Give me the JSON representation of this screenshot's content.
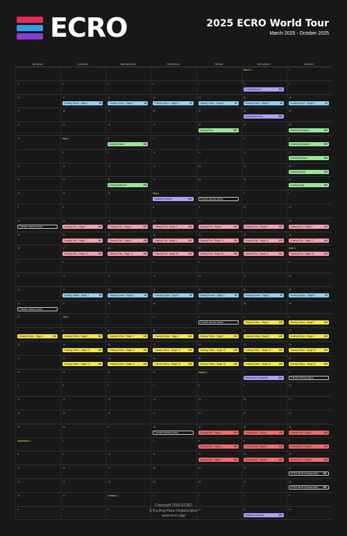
{
  "header": {
    "logo_text": "ECRO",
    "logo_colors": [
      "#e8285e",
      "#2f9ee6",
      "#8d3bd6"
    ],
    "title": "2025 ECRO World Tour",
    "subtitle": "March 2025 - October 2025"
  },
  "days": [
    "MONDAY",
    "TUESDAY",
    "WEDNESDAY",
    "THURSDAY",
    "FRIDAY",
    "SATURDAY",
    "SUNDAY"
  ],
  "colors": {
    "purple": "#b59cff",
    "blue": "#8fd2f5",
    "green": "#9be59a",
    "pink": "#f5a1b4",
    "yellow": "#f2e94c",
    "red": "#f26b6b",
    "outline": "outline"
  },
  "weeks": [
    {
      "days": [
        "",
        "",
        "",
        "",
        "",
        "March 1",
        "2"
      ],
      "events": []
    },
    {
      "days": [
        "3",
        "4",
        "5",
        "6",
        "7",
        "8",
        "9"
      ],
      "events": [
        {
          "col": 5,
          "row": 0,
          "label": "Chasing Blanche",
          "pts": "300",
          "color": "purple"
        }
      ]
    },
    {
      "days": [
        "10",
        "11",
        "12",
        "13",
        "14",
        "15",
        "16"
      ],
      "events": [
        {
          "col": 1,
          "row": 0,
          "label": "Chasing d'Azur - Stage 1",
          "pts": "60",
          "color": "blue"
        },
        {
          "col": 2,
          "row": 0,
          "label": "Chasing d'Azur - Stage 2",
          "pts": "60",
          "color": "blue"
        },
        {
          "col": 3,
          "row": 0,
          "label": "Chasing d'Azur - Stage 3",
          "pts": "60",
          "color": "blue"
        },
        {
          "col": 4,
          "row": 0,
          "label": "Chasing d'Azur - Stage 4",
          "pts": "60",
          "color": "blue"
        },
        {
          "col": 5,
          "row": 0,
          "label": "Chasing d'Azur - Stage 5",
          "pts": "60",
          "color": "blue"
        },
        {
          "col": 6,
          "row": 0,
          "label": "Chasing d'Azur - Stage 6",
          "pts": "60",
          "color": "blue"
        }
      ]
    },
    {
      "days": [
        "17",
        "18",
        "19",
        "20",
        "21",
        "22",
        "23"
      ],
      "events": [
        {
          "col": 5,
          "row": 0,
          "label": "Chasing Sanremo",
          "pts": "300",
          "color": "purple"
        }
      ]
    },
    {
      "days": [
        "24",
        "25",
        "26",
        "27",
        "28",
        "29",
        "30"
      ],
      "events": [
        {
          "col": 4,
          "row": 0,
          "label": "Chasing Saxo",
          "pts": "300",
          "color": "green"
        },
        {
          "col": 6,
          "row": 0,
          "label": "Chasing Wevelgem",
          "pts": "300",
          "color": "green"
        }
      ]
    },
    {
      "days": [
        "31",
        "April 1",
        "2",
        "3",
        "4",
        "5",
        "6"
      ],
      "events": [
        {
          "col": 2,
          "row": 0,
          "label": "Chasing Dwars",
          "pts": "300",
          "color": "green"
        },
        {
          "col": 6,
          "row": 0,
          "label": "Chasing Vlaanderen",
          "pts": "300",
          "color": "green"
        }
      ]
    },
    {
      "days": [
        "7",
        "8",
        "9",
        "10",
        "11",
        "12",
        "13"
      ],
      "events": [
        {
          "col": 6,
          "row": 0,
          "label": "Chasing Roubaix",
          "pts": "300",
          "color": "green"
        }
      ]
    },
    {
      "days": [
        "14",
        "15",
        "16",
        "17",
        "18",
        "19",
        "20"
      ],
      "events": [
        {
          "col": 6,
          "row": 0,
          "label": "Chasing Amstel",
          "pts": "300",
          "color": "green"
        }
      ]
    },
    {
      "days": [
        "21",
        "22",
        "23",
        "24",
        "25",
        "26",
        "27"
      ],
      "events": [
        {
          "col": 2,
          "row": 0,
          "label": "Chasing Wallonne",
          "pts": "300",
          "color": "green"
        },
        {
          "col": 6,
          "row": 0,
          "label": "Chasing Liege",
          "pts": "300",
          "color": "green"
        }
      ]
    },
    {
      "days": [
        "28",
        "29",
        "30",
        "May 1",
        "2",
        "3",
        "4"
      ],
      "events": [
        {
          "col": 3,
          "row": 0,
          "label": "Chasing Frankfurt",
          "pts": "300",
          "color": "purple"
        },
        {
          "col": 4,
          "row": 0,
          "label": "Transfer window opens",
          "pts": "",
          "color": "outline"
        }
      ]
    },
    {
      "days": [
        "5",
        "6",
        "7",
        "8",
        "9",
        "10",
        "11"
      ],
      "events": []
    },
    {
      "days": [
        "12",
        "13",
        "14",
        "15",
        "16",
        "17",
        "18"
      ],
      "events": [
        {
          "col": 0,
          "row": 0,
          "label": "Transfer window closes",
          "pts": "",
          "color": "outline"
        },
        {
          "col": 1,
          "row": 0,
          "label": "Chasing Pink - Stage 1",
          "pts": "100",
          "color": "pink"
        },
        {
          "col": 2,
          "row": 0,
          "label": "Chasing Pink - Stage 2",
          "pts": "100",
          "color": "pink"
        },
        {
          "col": 3,
          "row": 0,
          "label": "Chasing Pink - Stage 3",
          "pts": "100",
          "color": "pink"
        },
        {
          "col": 4,
          "row": 0,
          "label": "Chasing Pink - Stage 4",
          "pts": "100",
          "color": "pink"
        },
        {
          "col": 5,
          "row": 0,
          "label": "Chasing Pink - Stage 5",
          "pts": "100",
          "color": "pink"
        },
        {
          "col": 6,
          "row": 0,
          "label": "Chasing Pink - Stage 6",
          "pts": "100",
          "color": "pink"
        }
      ]
    },
    {
      "days": [
        "19",
        "20",
        "21",
        "22",
        "23",
        "24",
        "25"
      ],
      "events": [
        {
          "col": 1,
          "row": 0,
          "label": "Chasing Pink - Stage 7",
          "pts": "100",
          "color": "pink"
        },
        {
          "col": 2,
          "row": 0,
          "label": "Chasing Pink - Stage 8",
          "pts": "100",
          "color": "pink"
        },
        {
          "col": 3,
          "row": 0,
          "label": "Chasing Pink - Stage 9",
          "pts": "100",
          "color": "pink"
        },
        {
          "col": 4,
          "row": 0,
          "label": "Chasing Pink - Stage 10",
          "pts": "100",
          "color": "pink"
        },
        {
          "col": 5,
          "row": 0,
          "label": "Chasing Pink - Stage 11",
          "pts": "100",
          "color": "pink"
        },
        {
          "col": 6,
          "row": 0,
          "label": "Chasing Pink - Stage 12",
          "pts": "100",
          "color": "pink"
        }
      ]
    },
    {
      "days": [
        "26",
        "27",
        "28",
        "29",
        "30",
        "31",
        "June 1"
      ],
      "events": [
        {
          "col": 1,
          "row": 0,
          "label": "Chasing Pink - Stage 13",
          "pts": "100",
          "color": "pink"
        },
        {
          "col": 2,
          "row": 0,
          "label": "Chasing Pink - Stage 14",
          "pts": "100",
          "color": "pink"
        },
        {
          "col": 3,
          "row": 0,
          "label": "Chasing Pink - Stage 15",
          "pts": "100",
          "color": "pink"
        },
        {
          "col": 4,
          "row": 0,
          "label": "Chasing Pink - Stage 16",
          "pts": "100",
          "color": "pink"
        },
        {
          "col": 5,
          "row": 0,
          "label": "Chasing Pink - Stage 17",
          "pts": "100",
          "color": "pink"
        },
        {
          "col": 6,
          "row": 0,
          "label": "Chasing Pink - Stage 18",
          "pts": "100",
          "color": "pink"
        }
      ]
    },
    {
      "days": [
        "2",
        "3",
        "4",
        "5",
        "6",
        "7",
        "8"
      ],
      "events": []
    },
    {
      "days": [
        "9",
        "10",
        "11",
        "12",
        "13",
        "14",
        "15"
      ],
      "events": []
    },
    {
      "days": [
        "16",
        "17",
        "18",
        "19",
        "20",
        "21",
        "22"
      ],
      "events": [
        {
          "col": 1,
          "row": 0,
          "label": "Chasing Suisse - Stage 1",
          "pts": "60",
          "color": "blue"
        },
        {
          "col": 2,
          "row": 0,
          "label": "Chasing Suisse - Stage 2",
          "pts": "60",
          "color": "blue"
        },
        {
          "col": 3,
          "row": 0,
          "label": "Chasing Suisse - Stage 3",
          "pts": "60",
          "color": "blue"
        },
        {
          "col": 4,
          "row": 0,
          "label": "Chasing Suisse - Stage 4",
          "pts": "60",
          "color": "blue"
        },
        {
          "col": 5,
          "row": 0,
          "label": "Chasing Suisse - Stage 5",
          "pts": "60",
          "color": "blue"
        },
        {
          "col": 6,
          "row": 0,
          "label": "Chasing Suisse - Stage 6",
          "pts": "60",
          "color": "blue"
        }
      ]
    },
    {
      "days": [
        "23",
        "24",
        "25",
        "26",
        "27",
        "28",
        "29"
      ],
      "events": [
        {
          "col": 0,
          "row": 0,
          "label": "Transfer window opens",
          "pts": "",
          "color": "outline"
        }
      ]
    },
    {
      "days": [
        "30",
        "July 1",
        "2",
        "3",
        "4",
        "5",
        "6"
      ],
      "events": [
        {
          "col": 4,
          "row": 0,
          "label": "Transfer window closes",
          "pts": "",
          "color": "outline"
        },
        {
          "col": 5,
          "row": 0,
          "label": "Chasing Yellow - Stage 1",
          "pts": "120",
          "color": "yellow"
        },
        {
          "col": 6,
          "row": 0,
          "label": "Chasing Yellow - Stage 2",
          "pts": "120",
          "color": "yellow"
        }
      ]
    },
    {
      "days": [
        "7",
        "8",
        "9",
        "10",
        "11",
        "12",
        "13"
      ],
      "events": [
        {
          "col": 0,
          "row": 0,
          "label": "Chasing Yellow - Stage 3",
          "pts": "120",
          "color": "yellow"
        },
        {
          "col": 1,
          "row": 0,
          "label": "Chasing Yellow - Stage 4",
          "pts": "120",
          "color": "yellow"
        },
        {
          "col": 2,
          "row": 0,
          "label": "Chasing Yellow - Stage 5",
          "pts": "120",
          "color": "yellow"
        },
        {
          "col": 3,
          "row": 0,
          "label": "Chasing Yellow - Stage 6",
          "pts": "120",
          "color": "yellow"
        },
        {
          "col": 4,
          "row": 0,
          "label": "Chasing Yellow - Stage 7",
          "pts": "120",
          "color": "yellow"
        },
        {
          "col": 5,
          "row": 0,
          "label": "Chasing Yellow - Stage 8",
          "pts": "120",
          "color": "yellow"
        },
        {
          "col": 6,
          "row": 0,
          "label": "Chasing Yellow - Stage 9",
          "pts": "120",
          "color": "yellow"
        }
      ]
    },
    {
      "days": [
        "14",
        "15",
        "16",
        "17",
        "18",
        "19",
        "20"
      ],
      "events": [
        {
          "col": 1,
          "row": 0,
          "label": "Chasing Yellow - Stage 10",
          "pts": "120",
          "color": "yellow"
        },
        {
          "col": 2,
          "row": 0,
          "label": "Chasing Yellow - Stage 11",
          "pts": "120",
          "color": "yellow"
        },
        {
          "col": 3,
          "row": 0,
          "label": "Chasing Yellow - Stage 12",
          "pts": "120",
          "color": "yellow"
        },
        {
          "col": 4,
          "row": 0,
          "label": "Chasing Yellow - Stage 13",
          "pts": "120",
          "color": "yellow"
        },
        {
          "col": 5,
          "row": 0,
          "label": "Chasing Yellow - Stage 14",
          "pts": "120",
          "color": "yellow"
        },
        {
          "col": 6,
          "row": 0,
          "label": "Chasing Yellow - Stage 15",
          "pts": "120",
          "color": "yellow"
        }
      ]
    },
    {
      "days": [
        "21",
        "22",
        "23",
        "24",
        "25",
        "26",
        "27"
      ],
      "events": [
        {
          "col": 1,
          "row": 0,
          "label": "Chasing Yellow - Stage 16",
          "pts": "120",
          "color": "yellow"
        },
        {
          "col": 2,
          "row": 0,
          "label": "Chasing Yellow - Stage 17",
          "pts": "120",
          "color": "yellow"
        },
        {
          "col": 3,
          "row": 0,
          "label": "Chasing Yellow - Stage 18",
          "pts": "120",
          "color": "yellow"
        },
        {
          "col": 4,
          "row": 0,
          "label": "Chasing Yellow - Stage 19",
          "pts": "120",
          "color": "yellow"
        },
        {
          "col": 5,
          "row": 0,
          "label": "Chasing Yellow - Stage 20",
          "pts": "120",
          "color": "yellow"
        },
        {
          "col": 6,
          "row": 0,
          "label": "Chasing Yellow - Stage 21",
          "pts": "120",
          "color": "yellow"
        }
      ]
    },
    {
      "days": [
        "28",
        "29",
        "30",
        "31",
        "August 1",
        "2",
        "3"
      ],
      "events": [
        {
          "col": 5,
          "row": 0,
          "label": "Chasing San Sebastian",
          "pts": "300",
          "color": "purple"
        },
        {
          "col": 6,
          "row": 0,
          "label": "Transfer window opens",
          "pts": "",
          "color": "outline"
        }
      ]
    },
    {
      "days": [
        "4",
        "5",
        "6",
        "7",
        "8",
        "9",
        "10"
      ],
      "events": []
    },
    {
      "days": [
        "11",
        "12",
        "13",
        "14",
        "15",
        "16",
        "17"
      ],
      "events": []
    },
    {
      "days": [
        "18",
        "19",
        "20",
        "21",
        "22",
        "23",
        "24"
      ],
      "events": []
    },
    {
      "days": [
        "25",
        "26",
        "27",
        "28",
        "29",
        "30",
        "31"
      ],
      "events": [
        {
          "col": 3,
          "row": 0,
          "label": "Transfer window closes",
          "pts": "",
          "color": "outline"
        },
        {
          "col": 4,
          "row": 0,
          "label": "Chasing Red - Stage 1",
          "pts": "100",
          "color": "red"
        },
        {
          "col": 5,
          "row": 0,
          "label": "Chasing Red - Stage 2",
          "pts": "100",
          "color": "red"
        },
        {
          "col": 6,
          "row": 0,
          "label": "Chasing Red - Stage 3",
          "pts": "100",
          "color": "red"
        }
      ]
    },
    {
      "days": [
        "September 1",
        "2",
        "3",
        "4",
        "5",
        "6",
        "7"
      ],
      "events": [
        {
          "col": 4,
          "row": 0,
          "label": "Chasing Red - Stage 4",
          "pts": "100",
          "color": "red"
        },
        {
          "col": 5,
          "row": 0,
          "label": "Chasing Red - Stage 5",
          "pts": "100",
          "color": "red"
        },
        {
          "col": 6,
          "row": 0,
          "label": "Chasing Red - Stage 6",
          "pts": "100",
          "color": "red"
        }
      ]
    },
    {
      "days": [
        "8",
        "9",
        "10",
        "11",
        "12",
        "13",
        "14"
      ],
      "events": [
        {
          "col": 4,
          "row": 0,
          "label": "Chasing Red - Stage 7",
          "pts": "100",
          "color": "red"
        },
        {
          "col": 5,
          "row": 0,
          "label": "Chasing Red - Stage 8",
          "pts": "100",
          "color": "red"
        },
        {
          "col": 6,
          "row": 0,
          "label": "Chasing Red - Stage 9",
          "pts": "100",
          "color": "red"
        }
      ]
    },
    {
      "days": [
        "15",
        "16",
        "17",
        "18",
        "19",
        "20",
        "21"
      ],
      "events": [
        {
          "col": 6,
          "row": 0,
          "label": "ECRO World Championship",
          "pts": "800",
          "color": "outline"
        }
      ]
    },
    {
      "days": [
        "22",
        "23",
        "24",
        "25",
        "26",
        "27",
        "28"
      ],
      "events": [
        {
          "col": 6,
          "row": 0,
          "label": "ECRO World Championship",
          "pts": "800",
          "color": "outline"
        }
      ]
    },
    {
      "days": [
        "29",
        "30",
        "October 1",
        "2",
        "3",
        "4",
        "5"
      ],
      "events": []
    },
    {
      "days": [
        "6",
        "7",
        "8",
        "9",
        "10",
        "11",
        "12"
      ],
      "events": [
        {
          "col": 5,
          "row": 0,
          "label": "Chasing Lombardia",
          "pts": "300",
          "color": "purple"
        }
      ]
    }
  ],
  "footer": {
    "line1": "Copyright 2025 ECRO",
    "line2": "E-Cycling Race Organization",
    "line3": "www.ecro.app"
  }
}
